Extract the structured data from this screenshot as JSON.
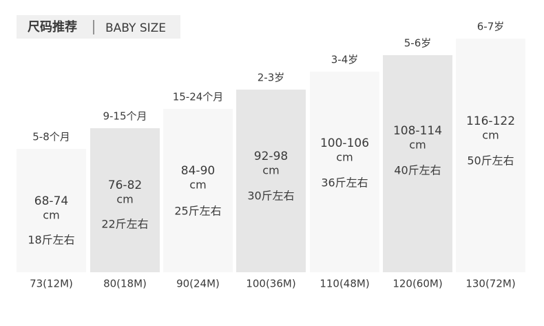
{
  "header": {
    "title": "尺码推荐",
    "subtitle": "BABY SIZE"
  },
  "columns": [
    {
      "age": "5-8个月",
      "size": "68-74",
      "unit": "cm",
      "weight": "18斤左右",
      "label": "73(12M)"
    },
    {
      "age": "9-15个月",
      "size": "76-82",
      "unit": "cm",
      "weight": "22斤左右",
      "label": "80(18M)"
    },
    {
      "age": "15-24个月",
      "size": "84-90",
      "unit": "cm",
      "weight": "25斤左右",
      "label": "90(24M)"
    },
    {
      "age": "2-3岁",
      "size": "92-98",
      "unit": "cm",
      "weight": "30斤左右",
      "label": "100(36M)"
    },
    {
      "age": "3-4岁",
      "size": "100-106",
      "unit": "cm",
      "weight": "36斤左右",
      "label": "110(48M)"
    },
    {
      "age": "5-6岁",
      "size": "108-114",
      "unit": "cm",
      "weight": "40斤左右",
      "label": "120(60M)"
    },
    {
      "age": "6-7岁",
      "size": "116-122",
      "unit": "cm",
      "weight": "50斤左右",
      "label": "130(72M)"
    }
  ]
}
